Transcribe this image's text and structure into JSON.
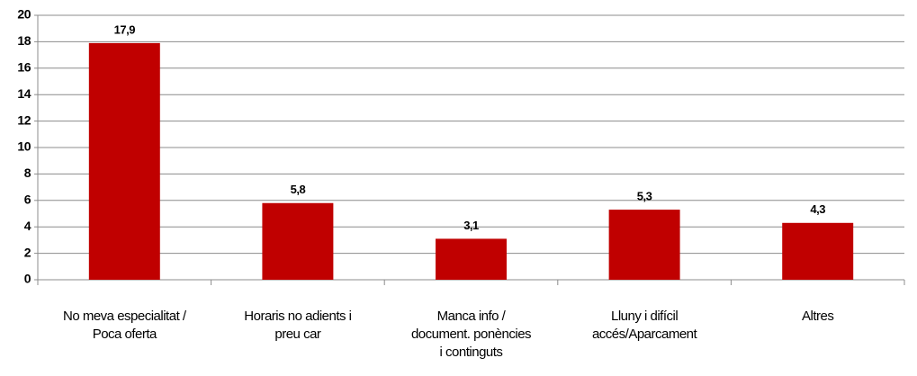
{
  "chart_data": {
    "type": "bar",
    "categories": [
      [
        "No meva especialitat /",
        "Poca oferta"
      ],
      [
        "Horaris no adients i",
        "preu car"
      ],
      [
        "Manca info /",
        "document. ponències",
        "i continguts"
      ],
      [
        "Lluny i difícil",
        "accés/Aparcament"
      ],
      [
        "Altres"
      ]
    ],
    "values": [
      17.9,
      5.8,
      3.1,
      5.3,
      4.3
    ],
    "value_labels": [
      "17,9",
      "5,8",
      "3,1",
      "5,3",
      "4,3"
    ],
    "color": "#c00000",
    "ylim": [
      0,
      20
    ],
    "yticks": [
      0,
      2,
      4,
      6,
      8,
      10,
      12,
      14,
      16,
      18,
      20
    ],
    "grid": true
  }
}
